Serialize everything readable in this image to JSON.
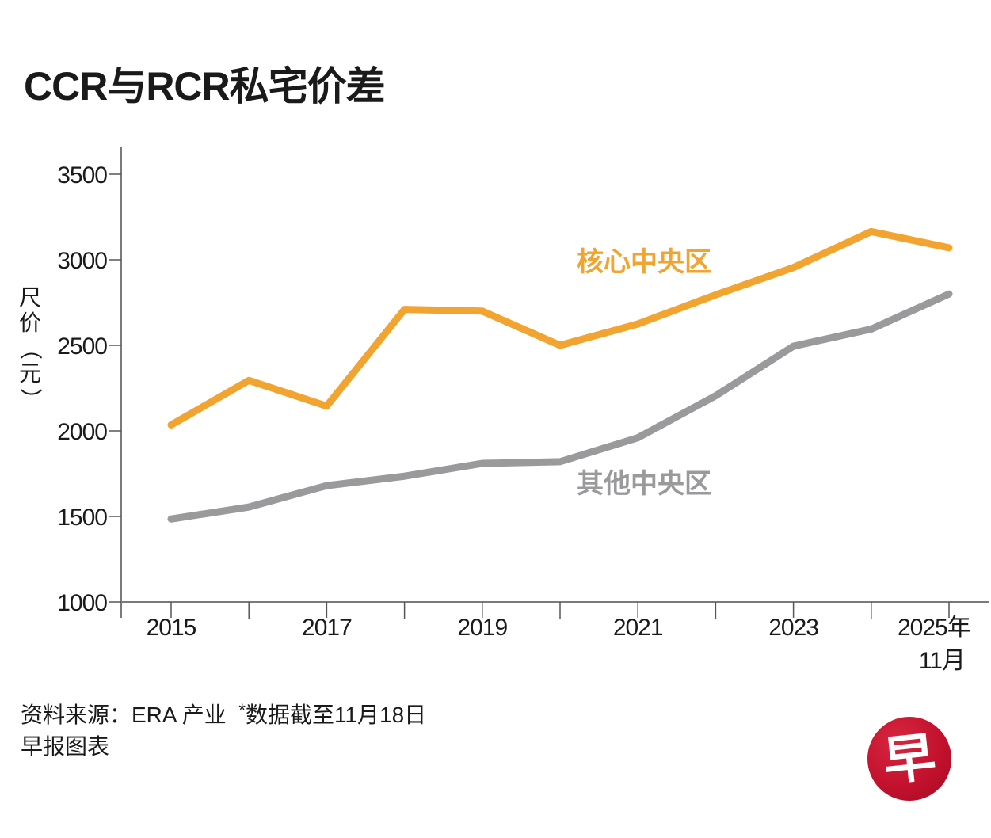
{
  "chart_data": {
    "type": "line",
    "title": "CCR与RCR私宅价差",
    "xlabel": "",
    "ylabel": "尺价（元）",
    "ylabel_chars": [
      "尺",
      "价",
      "（",
      "元",
      "）"
    ],
    "x": [
      2015,
      2016,
      2017,
      2018,
      2019,
      2020,
      2021,
      2022,
      2023,
      2024,
      2025
    ],
    "x_tick_labels": [
      {
        "x": 2015,
        "label": "2015"
      },
      {
        "x": 2017,
        "label": "2017"
      },
      {
        "x": 2019,
        "label": "2019"
      },
      {
        "x": 2021,
        "label": "2021"
      },
      {
        "x": 2023,
        "label": "2023"
      },
      {
        "x": 2025,
        "label": "2025年",
        "sublabel": "11月"
      }
    ],
    "ylim": [
      1000,
      3650
    ],
    "y_ticks": [
      1000,
      1500,
      2000,
      2500,
      3000,
      3500
    ],
    "grid": false,
    "series": [
      {
        "name": "核心中央区",
        "color": "#F2A431",
        "values": [
          2035,
          2295,
          2145,
          2710,
          2700,
          2500,
          2625,
          2795,
          2955,
          3165,
          3070
        ]
      },
      {
        "name": "其他中央区",
        "color": "#9A9A9C",
        "values": [
          1485,
          1555,
          1680,
          1735,
          1810,
          1820,
          1960,
          2205,
          2495,
          2595,
          2800
        ]
      }
    ],
    "legend": "inline-labels"
  },
  "footer": {
    "source_label": "资料来源：ERA 产业",
    "asterisk": "*",
    "note": "数据截至11月18日",
    "credit": "早报图表"
  },
  "logo": {
    "glyph": "早",
    "color": "#C8102E"
  }
}
